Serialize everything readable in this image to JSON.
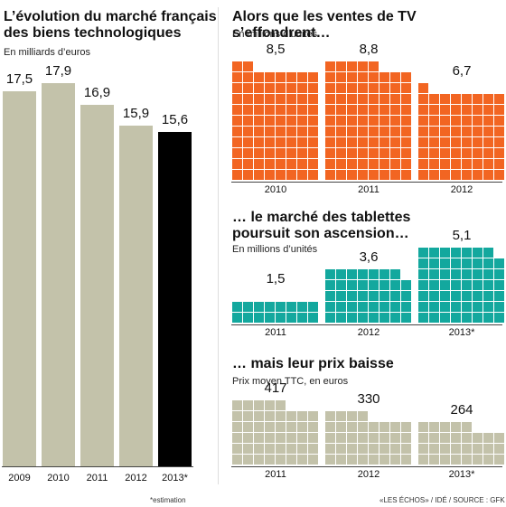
{
  "left": {
    "title_line1": "L’évolution du marché français",
    "title_line2": "des biens technologiques",
    "subtitle": "En milliards d’euros"
  },
  "tv": {
    "title": "Alors que les ventes de TV s’effondrent…",
    "subtitle": "En millions d’unités"
  },
  "tablets": {
    "title_line1": "… le marché des tablettes",
    "title_line2": "poursuit son ascension…",
    "subtitle": "En millions d’unités"
  },
  "price": {
    "title": "… mais leur prix baisse",
    "subtitle": "Prix moyen TTC, en euros"
  },
  "footer": {
    "note": "*estimation",
    "source": "«LES ÉCHOS» / IDÉ / SOURCE : GFK"
  },
  "colors": {
    "grey": "#c3c2aa",
    "black": "#000000",
    "orange": "#f26522",
    "teal": "#13a89e"
  },
  "chart_data": [
    {
      "type": "bar",
      "title": "L’évolution du marché français des biens technologiques",
      "ylabel": "En milliards d’euros",
      "categories": [
        "2009",
        "2010",
        "2011",
        "2012",
        "2013*"
      ],
      "values": [
        17.5,
        17.9,
        16.9,
        15.9,
        15.6
      ],
      "labels": [
        "17,5",
        "17,9",
        "16,9",
        "15,9",
        "15,6"
      ],
      "ylim": [
        0,
        17.9
      ]
    },
    {
      "type": "bar",
      "title": "Alors que les ventes de TV s’effondrent…",
      "ylabel": "En millions d’unités",
      "categories": [
        "2010",
        "2011",
        "2012"
      ],
      "values": [
        8.5,
        8.8,
        6.7
      ],
      "labels": [
        "8,5",
        "8,8",
        "6,7"
      ],
      "ylim": [
        0,
        8.8
      ]
    },
    {
      "type": "bar",
      "title": "… le marché des tablettes poursuit son ascension…",
      "ylabel": "En millions d’unités",
      "categories": [
        "2011",
        "2012",
        "2013*"
      ],
      "values": [
        1.5,
        3.6,
        5.1
      ],
      "labels": [
        "1,5",
        "3,6",
        "5,1"
      ],
      "ylim": [
        0,
        5.1
      ]
    },
    {
      "type": "bar",
      "title": "… mais leur prix baisse",
      "ylabel": "Prix moyen TTC, en euros",
      "categories": [
        "2011",
        "2012",
        "2013*"
      ],
      "values": [
        417,
        330,
        264
      ],
      "labels": [
        "417",
        "330",
        "264"
      ],
      "ylim": [
        0,
        417
      ]
    }
  ]
}
